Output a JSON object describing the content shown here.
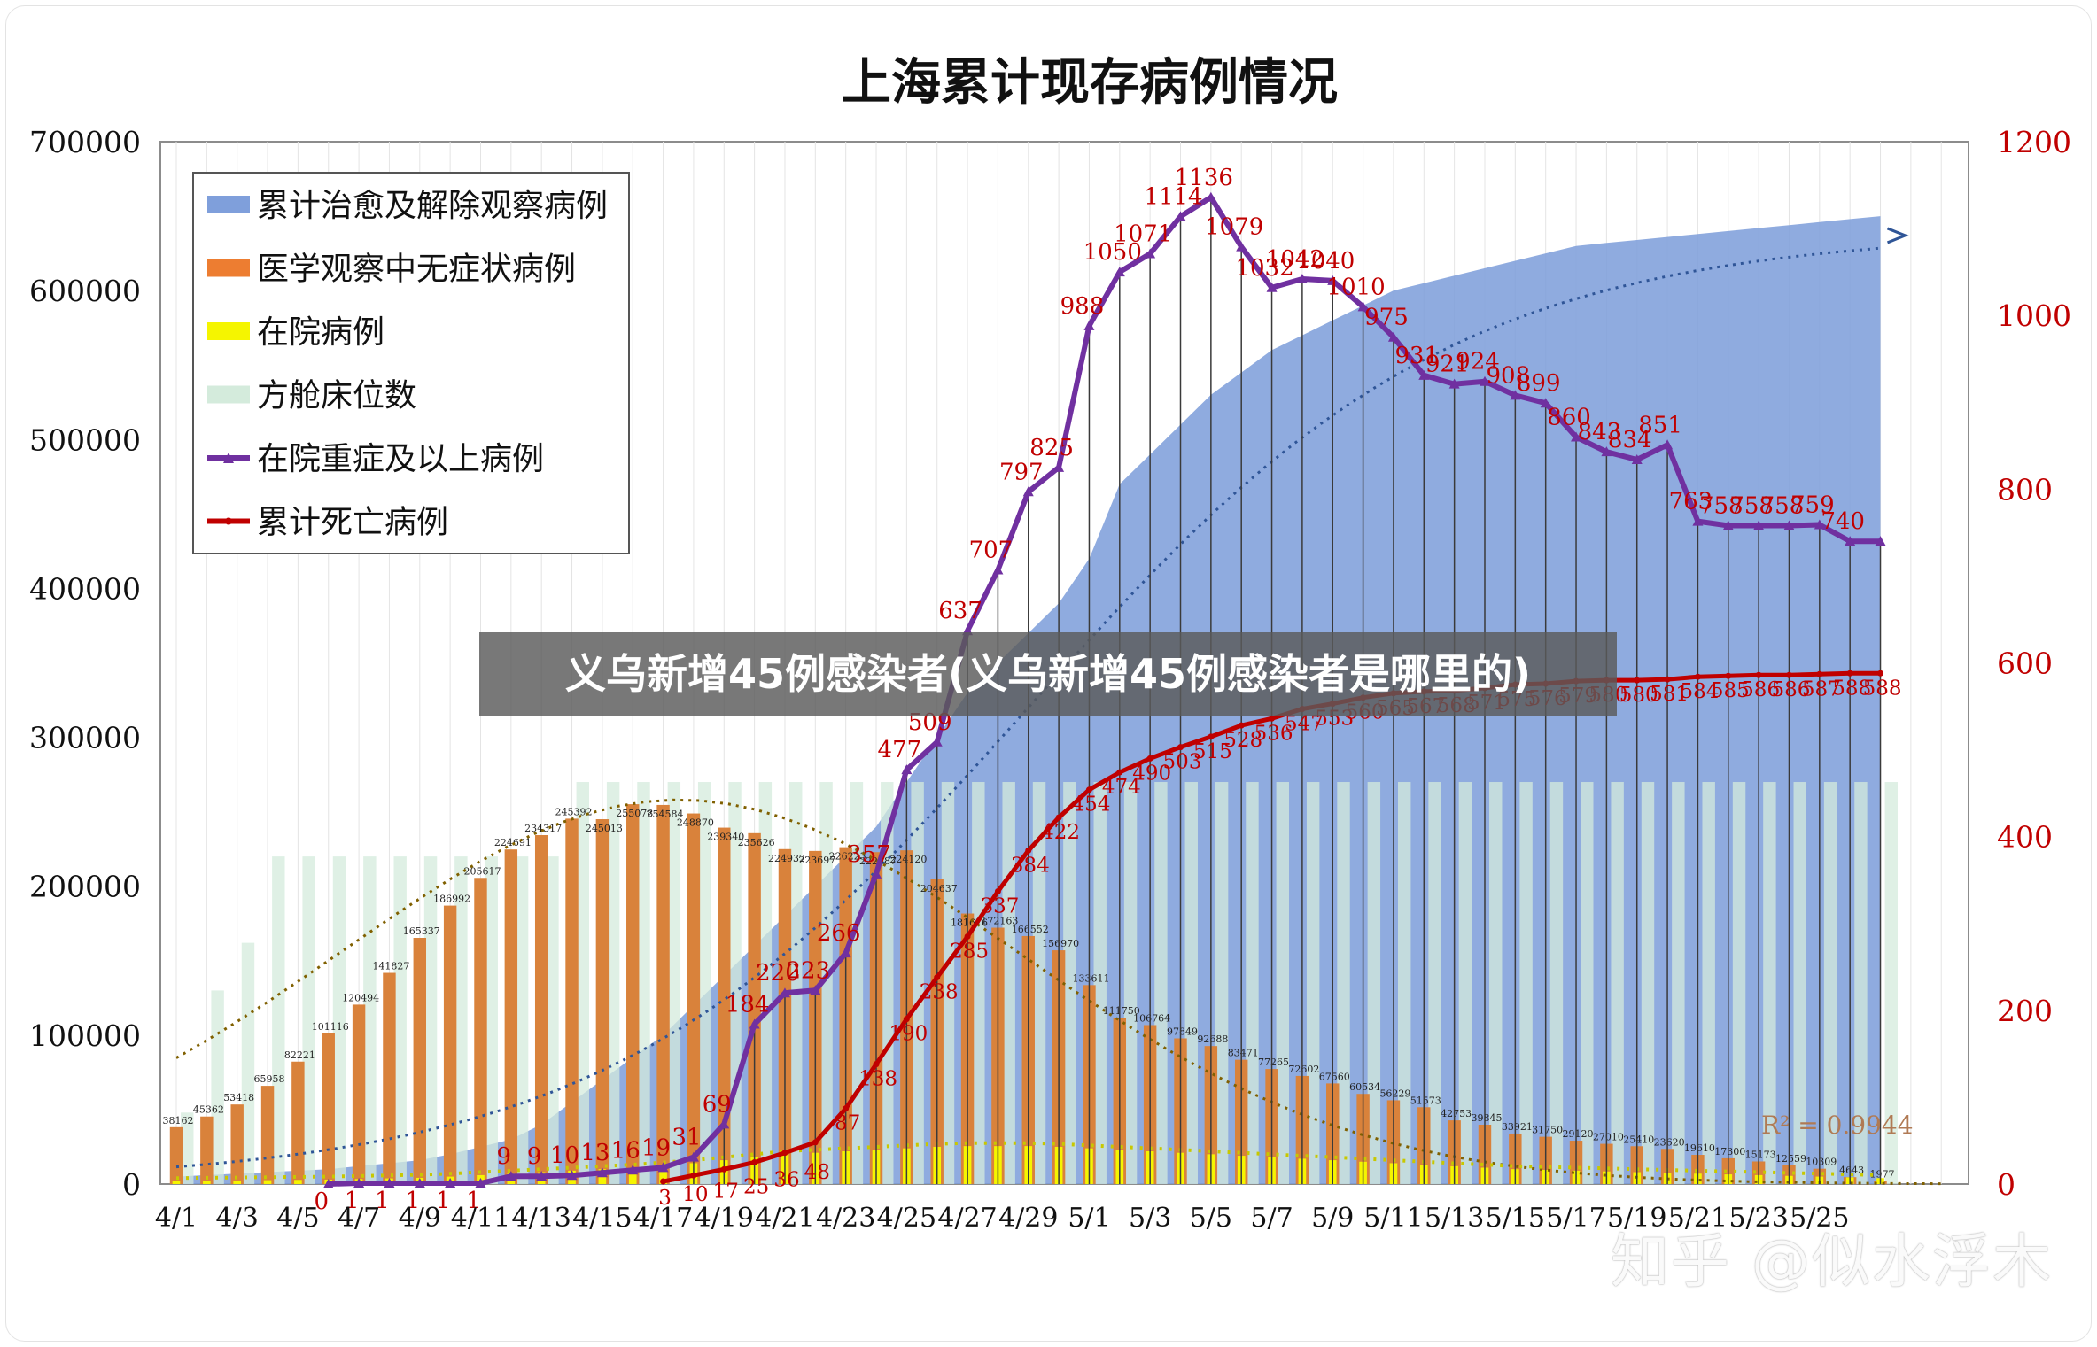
{
  "banner": "义乌新增45例感染者(义乌新增45例感染者是哪里的)",
  "watermark": "知乎 @似水浮木",
  "chart_data": {
    "type": "bar",
    "title": "上海累计现存病例情况",
    "x_labels": [
      "4/1",
      "4/3",
      "4/5",
      "4/7",
      "4/9",
      "4/11",
      "4/13",
      "4/15",
      "4/17",
      "4/19",
      "4/21",
      "4/23",
      "4/25",
      "4/27",
      "4/29",
      "5/1",
      "5/3",
      "5/5",
      "5/7",
      "5/9",
      "5/11",
      "5/13",
      "5/15",
      "5/17",
      "5/19",
      "5/21",
      "5/23",
      "5/25"
    ],
    "y_left_ticks": [
      "0",
      "100000",
      "200000",
      "300000",
      "400000",
      "500000",
      "600000",
      "700000"
    ],
    "y_right_ticks": [
      "0",
      "200",
      "400",
      "600",
      "800",
      "1000",
      "1200"
    ],
    "ylim_left": [
      0,
      700000
    ],
    "ylim_right": [
      0,
      1200
    ],
    "r_squared": "R² = 0.9944",
    "legend": [
      {
        "label": "累计治愈及解除观察病例",
        "color": "#7f9fdb",
        "kind": "area"
      },
      {
        "label": "医学观察中无症状病例",
        "color": "#ed7d31",
        "kind": "bar"
      },
      {
        "label": "在院病例",
        "color": "#f5f500",
        "kind": "bar"
      },
      {
        "label": "方舱床位数",
        "color": "#d4ebdc",
        "kind": "bar"
      },
      {
        "label": "在院重症及以上病例",
        "color": "#7030a0",
        "kind": "line"
      },
      {
        "label": "累计死亡病例",
        "color": "#c00000",
        "kind": "line"
      }
    ],
    "colors": {
      "cured": "#7f9fdb",
      "asym": "#d9823b",
      "hosp": "#f5f500",
      "cabin": "#d4ebdc",
      "severe": "#7030a0",
      "death": "#c00000",
      "label_red": "#c00000"
    },
    "asym_values": [
      38162,
      45362,
      53418,
      65958,
      82221,
      101116,
      120494,
      141827,
      165337,
      186992,
      205617,
      224691,
      234317,
      245392,
      245013,
      255078,
      254584,
      248870,
      239340,
      235626,
      224932,
      223697,
      226223,
      222887,
      224120,
      204637,
      181676,
      172163,
      166552,
      156970,
      133611,
      111750,
      106764,
      97849,
      92688,
      83471,
      77265,
      72602,
      67560,
      60534,
      56229,
      51573,
      42753,
      39845,
      33921,
      31750,
      29120,
      27010,
      25410,
      23620,
      19610,
      17300,
      15173,
      12559,
      10309,
      4643,
      1977
    ],
    "asym_labels": [
      "38162",
      "45362",
      "53418",
      "65958",
      "82221",
      "101116",
      "120494",
      "141827",
      "165337",
      "186992",
      "205617",
      "224691",
      "234317",
      "245392",
      "245013",
      "255078",
      "254584",
      "248870",
      "239340",
      "235626",
      "224932",
      "223697",
      "226223",
      "222887",
      "224120",
      "204637",
      "181676",
      "172163",
      "166552",
      "156970",
      "133611",
      "111750",
      "106764",
      "97849",
      "92688",
      "83471",
      "77265",
      "72602",
      "67560",
      "60534",
      "56229",
      "51573",
      "42753",
      "39845",
      "33921",
      "31750",
      "29120",
      "27010",
      "25410",
      "23620",
      "19610",
      "17300",
      "15173",
      "12559",
      "10309",
      "4643",
      "1977"
    ],
    "cabin_values": [
      48000,
      130000,
      162000,
      220000,
      220000,
      220000,
      220000,
      220000,
      220000,
      220000,
      220000,
      220000,
      220000,
      270000,
      270000,
      270000,
      270000,
      270000,
      270000,
      270000,
      270000,
      270000,
      270000,
      270000,
      270000,
      270000,
      270000,
      270000,
      270000,
      270000,
      270000,
      270000,
      270000,
      270000,
      270000,
      270000,
      270000,
      270000,
      270000,
      270000,
      270000,
      270000,
      270000,
      270000,
      270000,
      270000,
      270000,
      270000,
      270000,
      270000,
      270000,
      270000,
      270000,
      270000,
      270000,
      270000,
      270000
    ],
    "hosp_values": [
      2000,
      2200,
      2400,
      2600,
      2800,
      3000,
      3400,
      3800,
      4200,
      5000,
      6000,
      7000,
      8000,
      9000,
      10000,
      11000,
      12500,
      14000,
      16000,
      18000,
      20000,
      21000,
      22000,
      23000,
      24000,
      25000,
      25500,
      25500,
      25500,
      25000,
      24000,
      23000,
      22000,
      21000,
      20000,
      19000,
      18000,
      17000,
      16000,
      15000,
      14000,
      13000,
      12000,
      11000,
      10000,
      9500,
      9000,
      8500,
      8000,
      7500,
      7000,
      6500,
      6000,
      5500,
      5000,
      4500,
      4000
    ],
    "cured_values": [
      5000,
      6000,
      7000,
      8000,
      9000,
      10000,
      12000,
      14000,
      16000,
      20000,
      25000,
      30000,
      40000,
      55000,
      70000,
      85000,
      100000,
      120000,
      140000,
      160000,
      180000,
      200000,
      220000,
      240000,
      270000,
      300000,
      330000,
      350000,
      370000,
      390000,
      420000,
      470000,
      490000,
      510000,
      530000,
      545000,
      560000,
      570000,
      580000,
      590000,
      600000,
      605000,
      610000,
      615000,
      620000,
      625000,
      630000,
      632000,
      634000,
      636000,
      638000,
      640000,
      642000,
      644000,
      646000,
      648000,
      650000
    ],
    "severe_series": [
      null,
      null,
      null,
      null,
      null,
      null,
      null,
      null,
      null,
      null,
      null,
      null,
      null,
      null,
      null,
      null,
      null,
      null,
      null,
      null,
      null,
      null,
      null,
      null,
      null,
      null,
      null,
      null,
      null,
      null,
      null,
      null,
      null,
      null,
      null,
      null,
      null,
      null,
      null,
      null,
      null,
      null,
      null,
      null,
      null,
      null,
      null,
      null,
      null,
      null,
      null,
      null,
      null,
      null,
      null,
      null,
      null
    ],
    "severe_x": [
      5,
      6,
      7,
      8,
      9,
      10,
      11,
      12,
      13,
      14,
      15,
      16,
      17,
      18,
      19,
      20,
      21,
      22,
      23,
      24,
      25,
      26,
      27,
      28,
      29,
      30,
      31,
      32,
      33,
      34,
      35,
      36,
      37,
      38,
      39,
      40,
      41,
      42,
      43,
      44,
      45,
      46,
      47,
      48,
      49,
      50,
      51,
      52,
      53,
      54,
      55,
      56
    ],
    "severe_values": [
      0,
      1,
      1,
      1,
      1,
      1,
      9,
      9,
      10,
      13,
      16,
      19,
      31,
      69,
      184,
      220,
      223,
      266,
      357,
      477,
      509,
      637,
      707,
      797,
      825,
      988,
      1050,
      1071,
      1114,
      1136,
      1079,
      1032,
      1042,
      1040,
      1010,
      975,
      931,
      921,
      924,
      908,
      899,
      860,
      843,
      834,
      851,
      763,
      758,
      758,
      758,
      759,
      740,
      740
    ],
    "severe_labels": [
      "0",
      "1",
      "1",
      "1",
      "1",
      "1",
      "9",
      "9",
      "10",
      "13",
      "16",
      "19",
      "31",
      "69",
      "184",
      "220",
      "223",
      "266",
      "357",
      "477",
      "509",
      "637",
      "707",
      "797",
      "825",
      "988",
      "1050",
      "1071",
      "1114",
      "1136",
      "1079",
      "1032",
      "1042",
      "1040",
      "1010",
      "975",
      "931",
      "921",
      "924",
      "908",
      "899",
      "860",
      "843",
      "834",
      "851",
      "763",
      "758",
      "758",
      "758",
      "759",
      "740",
      ""
    ],
    "death_x": [
      16,
      17,
      18,
      19,
      20,
      21,
      22,
      23,
      24,
      25,
      26,
      27,
      28,
      29,
      30,
      31,
      32,
      33,
      34,
      35,
      36,
      37,
      38,
      39,
      40,
      41,
      42,
      43,
      44,
      45,
      46,
      47,
      48,
      49,
      50,
      51,
      52,
      53,
      54,
      55,
      56
    ],
    "death_values": [
      3,
      10,
      17,
      25,
      36,
      48,
      87,
      138,
      190,
      238,
      285,
      337,
      384,
      422,
      454,
      474,
      490,
      503,
      515,
      528,
      536,
      547,
      553,
      560,
      565,
      567,
      568,
      571,
      575,
      576,
      579,
      580,
      580,
      581,
      584,
      585,
      586,
      586,
      587,
      588,
      588
    ],
    "death_labels": [
      "3",
      "10",
      "17",
      "25",
      "36",
      "48",
      "87",
      "138",
      "190",
      "238",
      "285",
      "337",
      "384",
      "422",
      "454",
      "474",
      "490",
      "503",
      "515",
      "528",
      "536",
      "547",
      "553",
      "560",
      "565",
      "567",
      "568",
      "571",
      "575",
      "576",
      "579",
      "580",
      "580",
      "581",
      "584",
      "585",
      "586",
      "586",
      "587",
      "588",
      "588"
    ]
  }
}
